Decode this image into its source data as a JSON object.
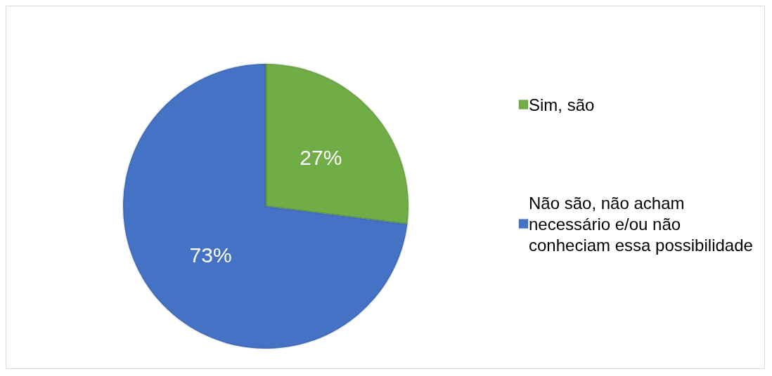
{
  "chart_data": {
    "type": "pie",
    "categories": [
      "Sim, são",
      "Não são, não acham necessário e/ou não conheciam essa possibilidade"
    ],
    "values": [
      27,
      73
    ],
    "colors": [
      "#70ad47",
      "#4472c4"
    ],
    "value_labels": [
      "27%",
      "73%"
    ],
    "legend": "right"
  }
}
